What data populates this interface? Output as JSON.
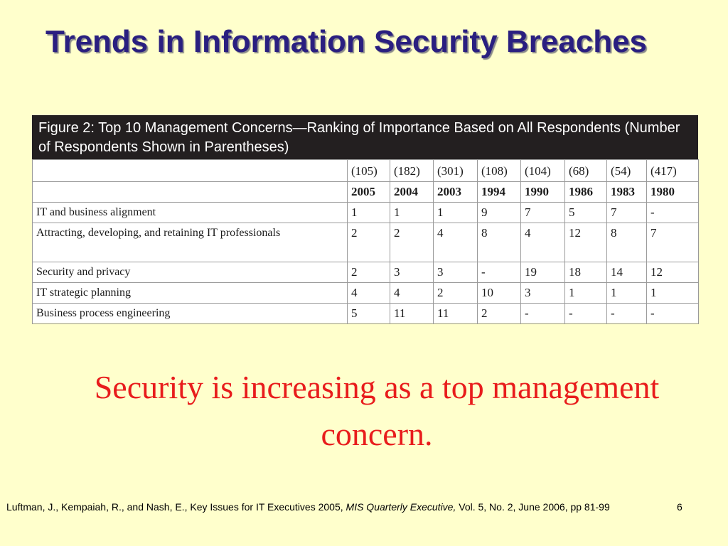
{
  "title": "Trends in Information Security Breaches",
  "figure": {
    "caption": "Figure 2: Top 10 Management Concerns—Ranking of Importance Based on All Respondents (Number of Respondents Shown in Parentheses)",
    "respondents": [
      "(105)",
      "(182)",
      "(301)",
      "(108)",
      "(104)",
      "(68)",
      "(54)",
      "(417)"
    ],
    "years": [
      "2005",
      "2004",
      "2003",
      "1994",
      "1990",
      "1986",
      "1983",
      "1980"
    ],
    "rows": [
      {
        "concern": "IT and business alignment",
        "ranks": [
          "1",
          "1",
          "1",
          "9",
          "7",
          "5",
          "7",
          "-"
        ]
      },
      {
        "concern": "Attracting, developing, and retaining IT professionals",
        "ranks": [
          "2",
          "2",
          "4",
          "8",
          "4",
          "12",
          "8",
          "7"
        ]
      },
      {
        "concern": "Security and privacy",
        "ranks": [
          "2",
          "3",
          "3",
          "-",
          "19",
          "18",
          "14",
          "12"
        ]
      },
      {
        "concern": "IT strategic planning",
        "ranks": [
          "4",
          "4",
          "2",
          "10",
          "3",
          "1",
          "1",
          "1"
        ]
      },
      {
        "concern": "Business process engineering",
        "ranks": [
          "5",
          "11",
          "11",
          "2",
          "-",
          "-",
          "-",
          "-"
        ]
      }
    ]
  },
  "statement": "Security is increasing as a top management concern.",
  "citation": {
    "before": "Luftman, J., Kempaiah, R., and Nash, E., Key Issues for IT Executives 2005, ",
    "journal": "MIS Quarterly Executive,",
    "after": " Vol. 5, No. 2, June 2006, pp 81-99"
  },
  "page_number": "6",
  "colors": {
    "background": "#ffffcc",
    "title": "#2a1f80",
    "statement": "#e81c1c",
    "caption_bar": "#231f20"
  }
}
